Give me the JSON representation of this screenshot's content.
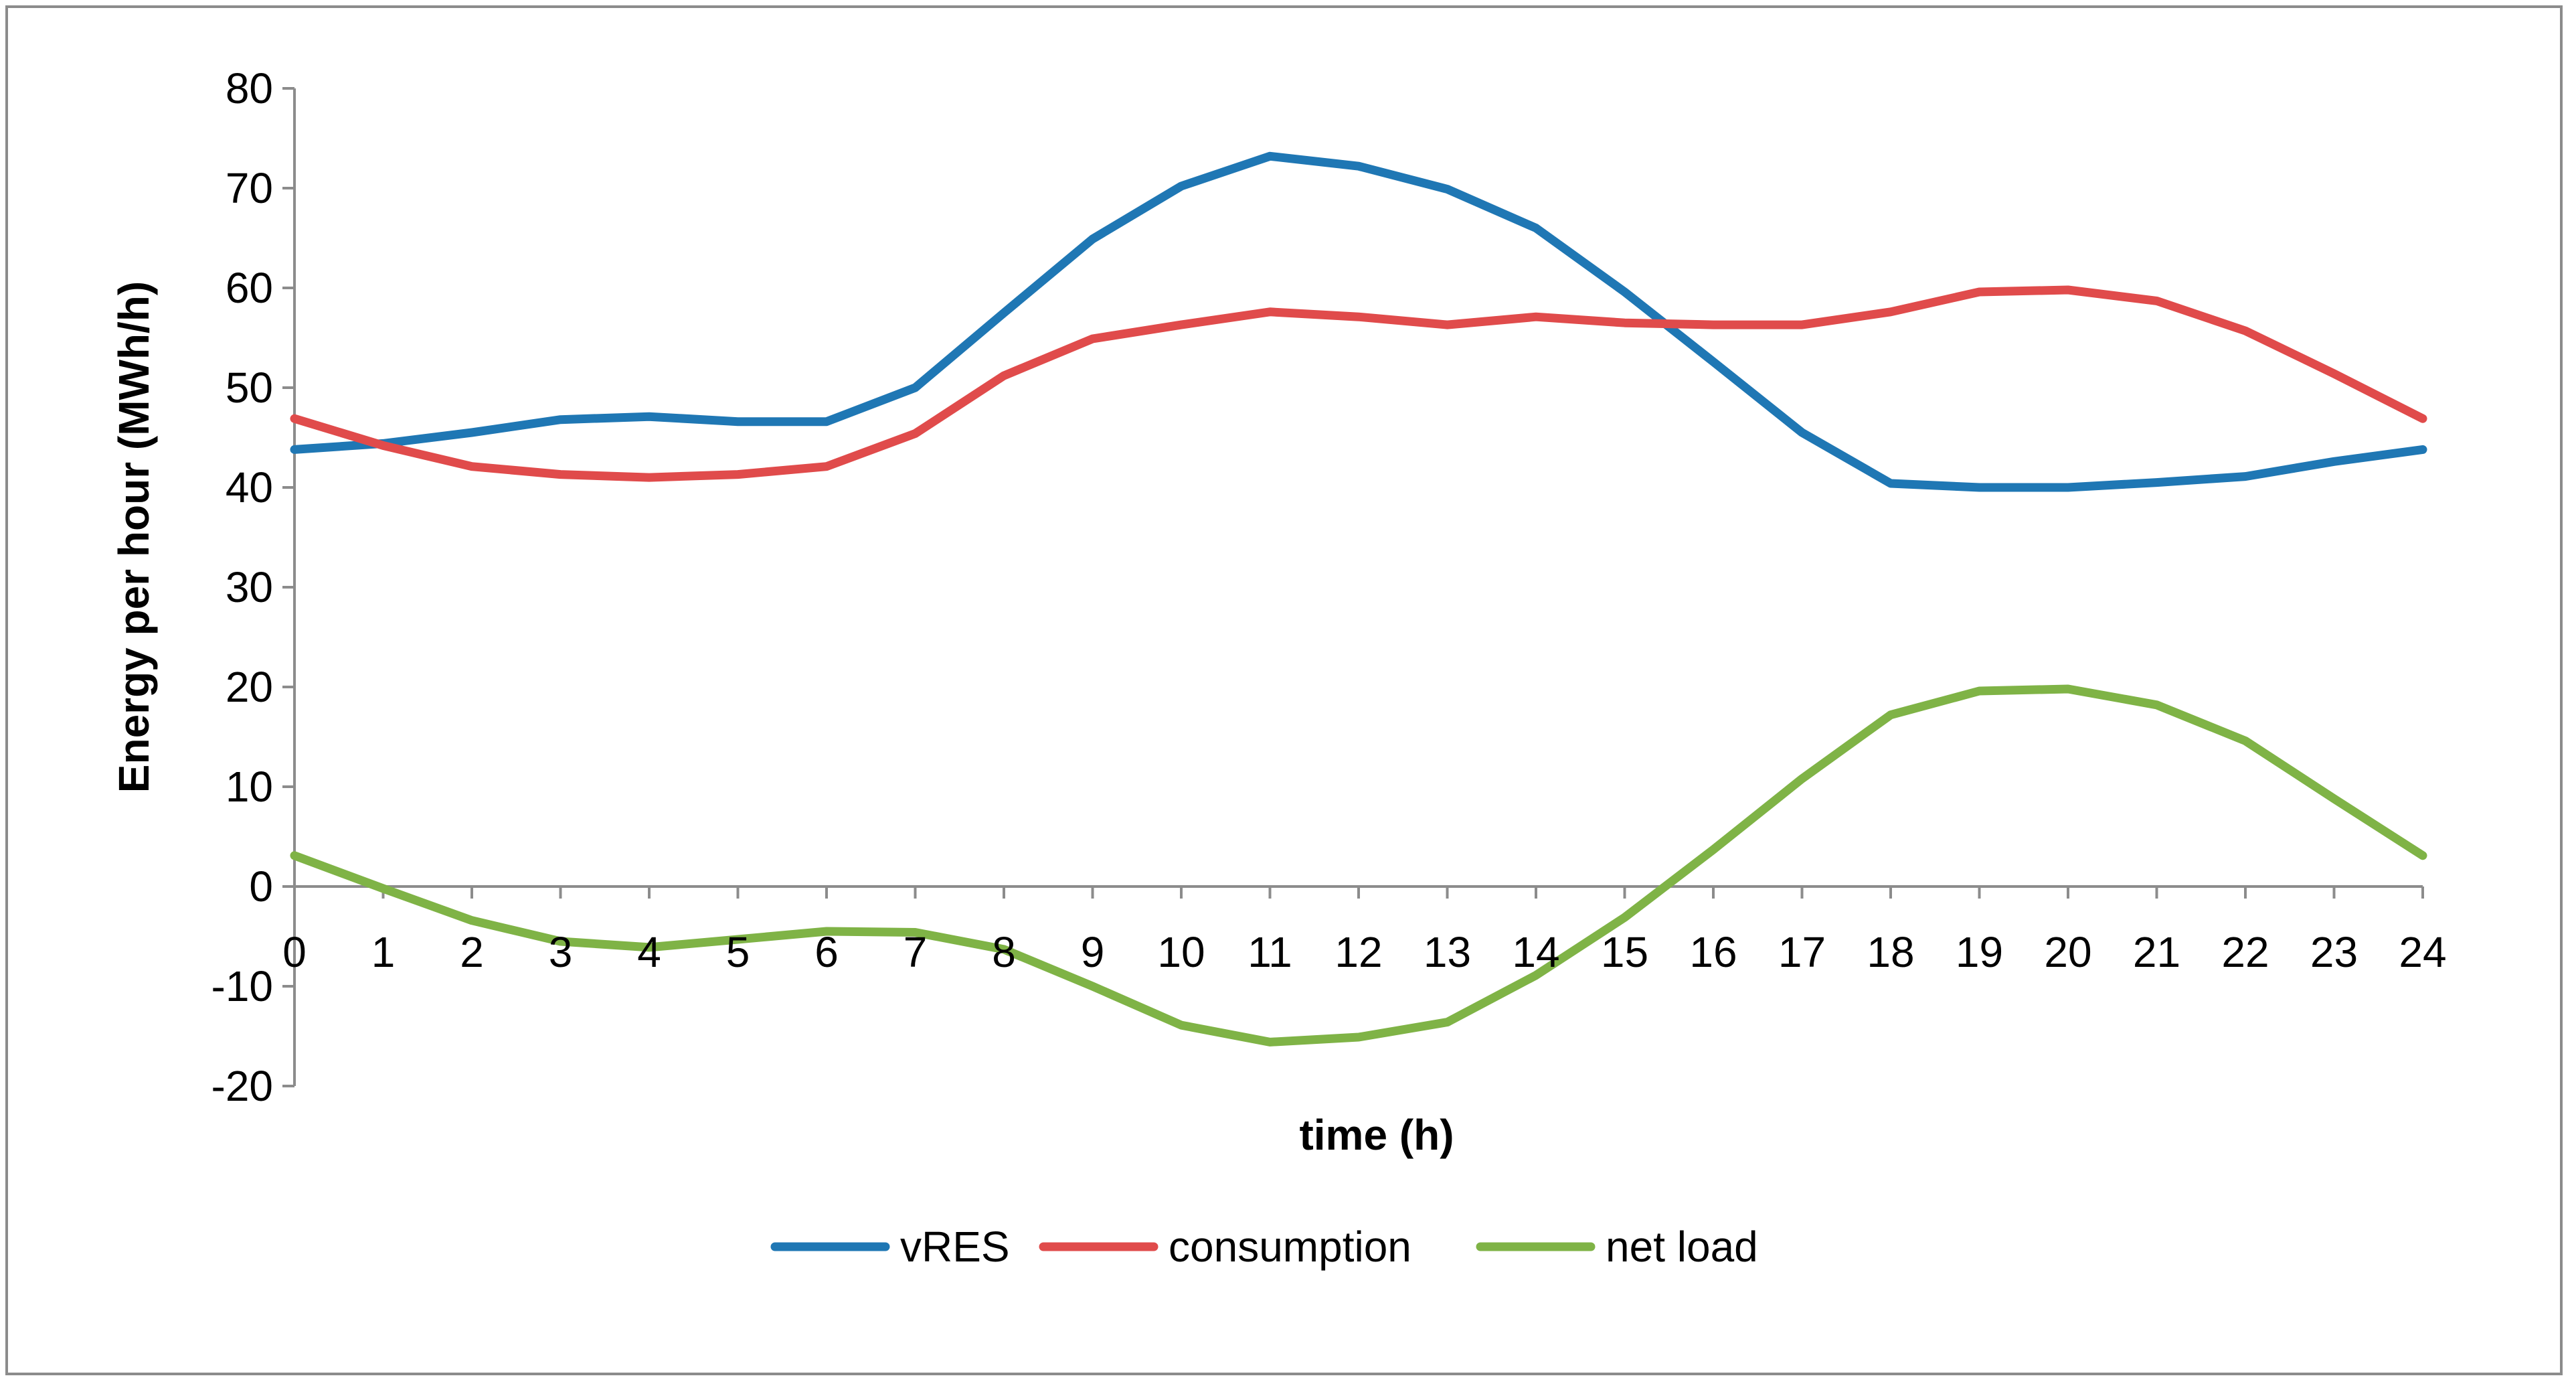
{
  "chart_data": {
    "type": "line",
    "title": "",
    "xlabel": "time (h)",
    "ylabel": "Energy per hour  (MWh/h)",
    "x": [
      0,
      1,
      2,
      3,
      4,
      5,
      6,
      7,
      8,
      9,
      10,
      11,
      12,
      13,
      14,
      15,
      16,
      17,
      18,
      19,
      20,
      21,
      22,
      23,
      24
    ],
    "xlim": [
      0,
      24
    ],
    "ylim": [
      -20,
      80
    ],
    "yticks": [
      -20,
      -10,
      0,
      10,
      20,
      30,
      40,
      50,
      60,
      70,
      80
    ],
    "grid": false,
    "legend": "bottom-center",
    "series": [
      {
        "name": "vRES",
        "color": "#1f77b4",
        "values": [
          43.8,
          44.4,
          45.5,
          46.8,
          47.1,
          46.6,
          46.6,
          50.0,
          57.5,
          64.9,
          70.2,
          73.2,
          72.2,
          69.9,
          66.0,
          59.6,
          52.6,
          45.5,
          40.4,
          40.0,
          40.0,
          40.5,
          41.1,
          42.6,
          43.8
        ]
      },
      {
        "name": "consumption",
        "color": "#e04b4b",
        "values": [
          46.9,
          44.2,
          42.1,
          41.3,
          41.0,
          41.3,
          42.1,
          45.4,
          51.2,
          54.9,
          56.3,
          57.6,
          57.1,
          56.3,
          57.1,
          56.5,
          56.3,
          56.3,
          57.6,
          59.6,
          59.8,
          58.7,
          55.7,
          51.4,
          46.9
        ]
      },
      {
        "name": "net load",
        "color": "#7fb346",
        "values": [
          3.1,
          -0.2,
          -3.4,
          -5.5,
          -6.1,
          -5.3,
          -4.5,
          -4.6,
          -6.3,
          -10.0,
          -13.9,
          -15.6,
          -15.1,
          -13.6,
          -8.9,
          -3.1,
          3.7,
          10.8,
          17.2,
          19.6,
          19.8,
          18.2,
          14.6,
          8.8,
          3.1
        ]
      }
    ]
  }
}
